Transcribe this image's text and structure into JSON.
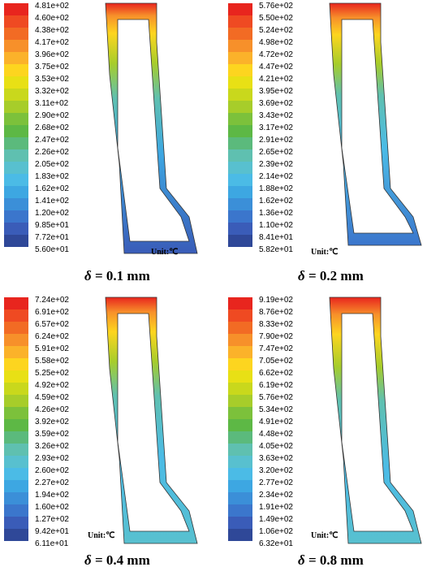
{
  "palette": [
    "#e8251e",
    "#ef4a22",
    "#f26b24",
    "#f7902a",
    "#fbb22a",
    "#fdd51f",
    "#e8e015",
    "#c9d81c",
    "#a7cd2a",
    "#7cc13b",
    "#5db845",
    "#5bba7c",
    "#5fc0b0",
    "#58c0cf",
    "#4bbbe6",
    "#3da7e2",
    "#3b8fd8",
    "#3b76cc",
    "#3a5cb8",
    "#2f4898"
  ],
  "panels": [
    {
      "ticks": [
        "4.81e+02",
        "4.60e+02",
        "4.38e+02",
        "4.17e+02",
        "3.96e+02",
        "3.75e+02",
        "3.53e+02",
        "3.32e+02",
        "3.11e+02",
        "2.90e+02",
        "2.68e+02",
        "2.47e+02",
        "2.26e+02",
        "2.05e+02",
        "1.83e+02",
        "1.62e+02",
        "1.41e+02",
        "1.20e+02",
        "9.85e+01",
        "7.72e+01",
        "5.60e+01"
      ],
      "unit": "Unit:℃",
      "delta": "δ",
      "caption": "= 0.1 mm"
    },
    {
      "ticks": [
        "5.76e+02",
        "5.50e+02",
        "5.24e+02",
        "4.98e+02",
        "4.72e+02",
        "4.47e+02",
        "4.21e+02",
        "3.95e+02",
        "3.69e+02",
        "3.43e+02",
        "3.17e+02",
        "2.91e+02",
        "2.65e+02",
        "2.39e+02",
        "2.14e+02",
        "1.88e+02",
        "1.62e+02",
        "1.36e+02",
        "1.10e+02",
        "8.41e+01",
        "5.82e+01"
      ],
      "unit": "Unit:℃",
      "delta": "δ",
      "caption": "= 0.2 mm"
    },
    {
      "ticks": [
        "7.24e+02",
        "6.91e+02",
        "6.57e+02",
        "6.24e+02",
        "5.91e+02",
        "5.58e+02",
        "5.25e+02",
        "4.92e+02",
        "4.59e+02",
        "4.26e+02",
        "3.92e+02",
        "3.59e+02",
        "3.26e+02",
        "2.93e+02",
        "2.60e+02",
        "2.27e+02",
        "1.94e+02",
        "1.60e+02",
        "1.27e+02",
        "9.42e+01",
        "6.11e+01"
      ],
      "unit": "Unit:℃",
      "delta": "δ",
      "caption": "= 0.4 mm"
    },
    {
      "ticks": [
        "9.19e+02",
        "8.76e+02",
        "8.33e+02",
        "7.90e+02",
        "7.47e+02",
        "7.05e+02",
        "6.62e+02",
        "6.19e+02",
        "5.76e+02",
        "5.34e+02",
        "4.91e+02",
        "4.48e+02",
        "4.05e+02",
        "3.63e+02",
        "3.20e+02",
        "2.77e+02",
        "2.34e+02",
        "1.91e+02",
        "1.49e+02",
        "1.06e+02",
        "6.32e+01"
      ],
      "unit": "Unit:℃",
      "delta": "δ",
      "caption": "= 0.8 mm"
    }
  ]
}
